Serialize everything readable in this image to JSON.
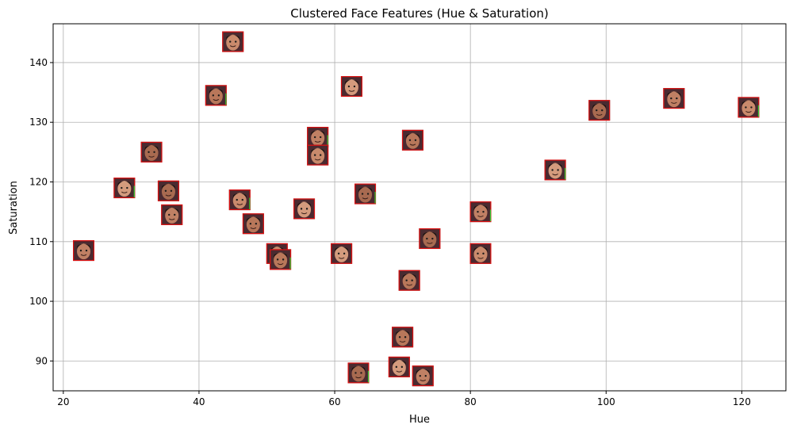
{
  "chart_data": {
    "type": "scatter",
    "title": "Clustered Face Features (Hue & Saturation)",
    "xlabel": "Hue",
    "ylabel": "Saturation",
    "xlim": [
      18.5,
      126.5
    ],
    "ylim": [
      85,
      146.5
    ],
    "xticks": [
      20,
      40,
      60,
      80,
      100,
      120
    ],
    "yticks": [
      90,
      100,
      110,
      120,
      130,
      140
    ],
    "grid": true,
    "marker": "face-thumbnail",
    "points": [
      {
        "x": 45,
        "y": 143.5
      },
      {
        "x": 42.5,
        "y": 134.5
      },
      {
        "x": 62.5,
        "y": 136
      },
      {
        "x": 33,
        "y": 125
      },
      {
        "x": 57.5,
        "y": 127.5
      },
      {
        "x": 57.5,
        "y": 124.5
      },
      {
        "x": 71.5,
        "y": 127
      },
      {
        "x": 29,
        "y": 119
      },
      {
        "x": 35.5,
        "y": 118.5
      },
      {
        "x": 36,
        "y": 114.5
      },
      {
        "x": 46,
        "y": 117
      },
      {
        "x": 48,
        "y": 113
      },
      {
        "x": 55.5,
        "y": 115.5
      },
      {
        "x": 64.5,
        "y": 118
      },
      {
        "x": 23,
        "y": 108.5
      },
      {
        "x": 51.5,
        "y": 108
      },
      {
        "x": 52,
        "y": 107
      },
      {
        "x": 61,
        "y": 108
      },
      {
        "x": 74,
        "y": 110.5
      },
      {
        "x": 81.5,
        "y": 115
      },
      {
        "x": 81.5,
        "y": 108
      },
      {
        "x": 71,
        "y": 103.5
      },
      {
        "x": 92.5,
        "y": 122
      },
      {
        "x": 99,
        "y": 132
      },
      {
        "x": 110,
        "y": 134
      },
      {
        "x": 121,
        "y": 132.5
      },
      {
        "x": 70,
        "y": 94
      },
      {
        "x": 69.5,
        "y": 89
      },
      {
        "x": 63.5,
        "y": 88
      },
      {
        "x": 73,
        "y": 87.5
      }
    ],
    "colors": {
      "grid": "#b0b0b0",
      "frame": "#000000",
      "thumbnail_border": "#e01010",
      "thumbnail_accent": "#33cc33",
      "thumbnail_background": "#4a2a30"
    }
  }
}
